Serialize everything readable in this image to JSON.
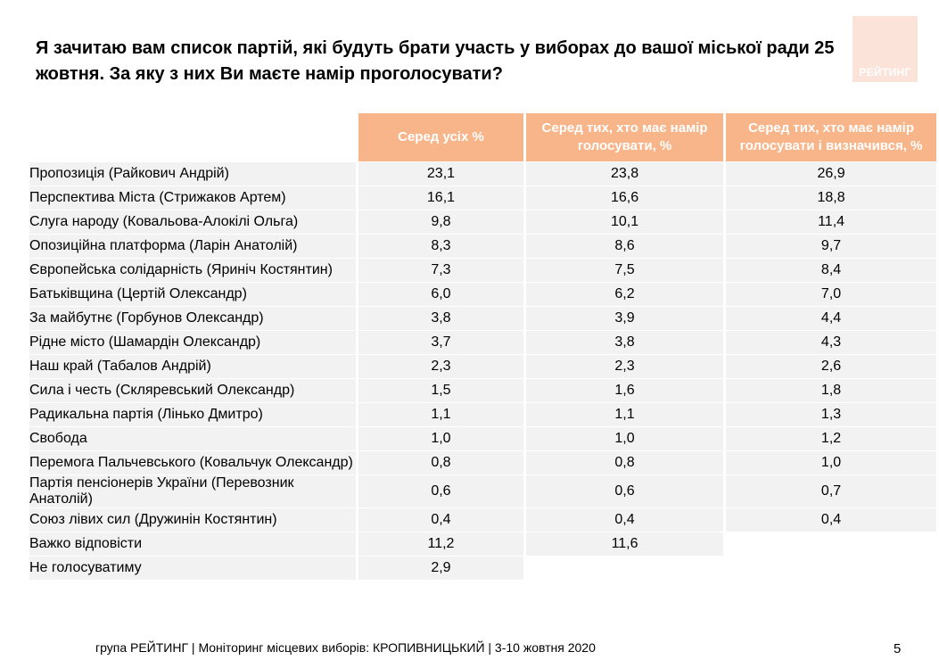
{
  "title": "Я зачитаю вам список партій, які будуть брати участь у виборах до вашої міської ради 25 жовтня. За яку з них Ви маєте намір проголосувати?",
  "logo_text": "РЕЙТИНГ",
  "columns": [
    "Серед усіх %",
    "Серед тих, хто має намір голосувати, %",
    "Серед тих, хто має намір голосувати і визначився, %"
  ],
  "rows": [
    {
      "party": "Пропозиція (Райкович Андрій)",
      "all": "23,1",
      "voters": "23,8",
      "decided": "26,9"
    },
    {
      "party": "Перспектива Міста (Стрижаков Артем)",
      "all": "16,1",
      "voters": "16,6",
      "decided": "18,8"
    },
    {
      "party": "Слуга народу (Ковальова-Алокілі Ольга)",
      "all": "9,8",
      "voters": "10,1",
      "decided": "11,4"
    },
    {
      "party": "Опозиційна платформа (Ларін Анатолій)",
      "all": "8,3",
      "voters": "8,6",
      "decided": "9,7"
    },
    {
      "party": "Європейська солідарність (Яриніч Костянтин)",
      "all": "7,3",
      "voters": "7,5",
      "decided": "8,4"
    },
    {
      "party": "Батьківщина (Цертій Олександр)",
      "all": "6,0",
      "voters": "6,2",
      "decided": "7,0"
    },
    {
      "party": "За майбутнє (Горбунов Олександр)",
      "all": "3,8",
      "voters": "3,9",
      "decided": "4,4"
    },
    {
      "party": "Рідне місто (Шамардін Олександр)",
      "all": "3,7",
      "voters": "3,8",
      "decided": "4,3"
    },
    {
      "party": "Наш край (Табалов Андрій)",
      "all": "2,3",
      "voters": "2,3",
      "decided": "2,6"
    },
    {
      "party": "Сила і честь (Скляревський Олександр)",
      "all": "1,5",
      "voters": "1,6",
      "decided": "1,8"
    },
    {
      "party": "Радикальна партія (Лінько Дмитро)",
      "all": "1,1",
      "voters": "1,1",
      "decided": "1,3"
    },
    {
      "party": "Свобода",
      "all": "1,0",
      "voters": "1,0",
      "decided": "1,2"
    },
    {
      "party": "Перемога Пальчевського (Ковальчук Олександр)",
      "all": "0,8",
      "voters": "0,8",
      "decided": "1,0"
    },
    {
      "party": "Партія пенсіонерів України (Перевозник Анатолій)",
      "all": "0,6",
      "voters": "0,6",
      "decided": "0,7"
    },
    {
      "party": "Союз лівих сил (Дружинін Костянтин)",
      "all": "0,4",
      "voters": "0,4",
      "decided": "0,4"
    },
    {
      "party": "Важко відповісти",
      "all": "11,2",
      "voters": "11,6",
      "decided": ""
    },
    {
      "party": "Не голосуватиму",
      "all": "2,9",
      "voters": "",
      "decided": ""
    }
  ],
  "footer": "група РЕЙТИНГ  | Моніторинг місцевих виборів: КРОПИВНИЦЬКИЙ | 3-10 жовтня 2020",
  "page_number": "5",
  "colors": {
    "header_bg": "#f8b58a",
    "row_bg": "#f2f2f2",
    "logo_bg": "#fbe3da"
  }
}
